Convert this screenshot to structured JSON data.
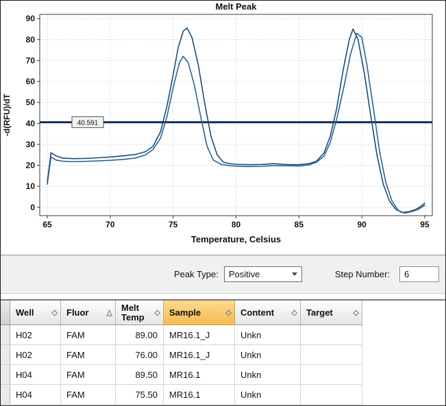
{
  "chart_data": {
    "type": "line",
    "title": "Melt Peak",
    "xlabel": "Temperature, Celsius",
    "ylabel": "-d(RFU)/dT",
    "xlim": [
      64.4,
      95.6
    ],
    "ylim": [
      -4,
      92
    ],
    "xticks": [
      65,
      70,
      75,
      80,
      85,
      90,
      95
    ],
    "yticks": [
      0,
      10,
      20,
      30,
      40,
      50,
      60,
      70,
      80,
      90
    ],
    "grid": true,
    "legend": "none",
    "threshold": {
      "value": 40.591,
      "label": "40.591",
      "color": "#16365c"
    },
    "series": [
      {
        "name": "H02 MR16.1_J",
        "color": "#1b4a7a",
        "peaks": [
          76.0,
          89.0
        ],
        "points": [
          [
            65,
            12
          ],
          [
            65.3,
            26
          ],
          [
            65.7,
            24.5
          ],
          [
            66.2,
            23.5
          ],
          [
            67,
            23.2
          ],
          [
            68,
            23.3
          ],
          [
            69,
            23.6
          ],
          [
            70,
            24
          ],
          [
            71,
            24.5
          ],
          [
            72,
            25.2
          ],
          [
            72.8,
            26.5
          ],
          [
            73.4,
            29
          ],
          [
            74,
            36
          ],
          [
            74.5,
            48
          ],
          [
            75,
            63
          ],
          [
            75.4,
            76
          ],
          [
            75.8,
            84
          ],
          [
            76.1,
            85.5
          ],
          [
            76.5,
            81
          ],
          [
            77,
            68
          ],
          [
            77.5,
            50
          ],
          [
            78,
            34
          ],
          [
            78.5,
            25
          ],
          [
            79,
            21.5
          ],
          [
            79.5,
            20.8
          ],
          [
            80,
            20.5
          ],
          [
            81,
            20.3
          ],
          [
            82,
            20.4
          ],
          [
            83,
            20.8
          ],
          [
            84,
            20.4
          ],
          [
            85,
            20.3
          ],
          [
            85.8,
            20.8
          ],
          [
            86.4,
            22
          ],
          [
            87,
            26
          ],
          [
            87.5,
            34
          ],
          [
            88,
            47
          ],
          [
            88.5,
            65
          ],
          [
            89,
            80
          ],
          [
            89.3,
            85
          ],
          [
            89.7,
            80
          ],
          [
            90.2,
            64
          ],
          [
            90.7,
            44
          ],
          [
            91.2,
            25
          ],
          [
            91.7,
            11
          ],
          [
            92.2,
            3
          ],
          [
            92.7,
            -1
          ],
          [
            93.2,
            -2.5
          ],
          [
            93.8,
            -2
          ],
          [
            94.3,
            -1
          ],
          [
            94.7,
            0.5
          ],
          [
            95,
            2
          ]
        ]
      },
      {
        "name": "H04 MR16.1",
        "color": "#2a6390",
        "peaks": [
          75.5,
          89.5
        ],
        "points": [
          [
            65,
            11
          ],
          [
            65.3,
            24
          ],
          [
            65.7,
            22.5
          ],
          [
            66.2,
            22
          ],
          [
            67,
            21.8
          ],
          [
            68,
            21.9
          ],
          [
            69,
            22.1
          ],
          [
            70,
            22.4
          ],
          [
            71,
            22.8
          ],
          [
            72,
            23.5
          ],
          [
            72.8,
            25
          ],
          [
            73.4,
            27.5
          ],
          [
            74,
            33
          ],
          [
            74.5,
            43
          ],
          [
            75,
            57
          ],
          [
            75.5,
            69
          ],
          [
            75.8,
            72
          ],
          [
            76.2,
            69
          ],
          [
            76.7,
            58
          ],
          [
            77.2,
            43
          ],
          [
            77.7,
            29
          ],
          [
            78.2,
            22.5
          ],
          [
            78.8,
            20.5
          ],
          [
            79.5,
            19.8
          ],
          [
            80,
            19.6
          ],
          [
            81,
            19.4
          ],
          [
            82,
            19.5
          ],
          [
            83,
            19.9
          ],
          [
            84,
            19.8
          ],
          [
            85,
            19.7
          ],
          [
            85.8,
            20.2
          ],
          [
            86.4,
            21.5
          ],
          [
            87,
            24.5
          ],
          [
            87.5,
            31
          ],
          [
            88,
            42
          ],
          [
            88.6,
            58
          ],
          [
            89.1,
            73
          ],
          [
            89.6,
            83
          ],
          [
            90,
            81
          ],
          [
            90.4,
            68
          ],
          [
            90.9,
            48
          ],
          [
            91.4,
            27
          ],
          [
            91.9,
            12
          ],
          [
            92.4,
            3
          ],
          [
            92.9,
            -1.5
          ],
          [
            93.4,
            -2.8
          ],
          [
            94,
            -2
          ],
          [
            94.5,
            -1
          ],
          [
            95,
            1
          ]
        ]
      }
    ]
  },
  "controls": {
    "peak_type_label": "Peak Type:",
    "peak_type_value": "Positive",
    "step_number_label": "Step Number:",
    "step_number_value": "6"
  },
  "table": {
    "columns": [
      {
        "label": "Well",
        "sort_icon": "diamond",
        "align": "left"
      },
      {
        "label": "Fluor",
        "sort_icon": "triangle-up",
        "align": "left"
      },
      {
        "label": "Melt Temp",
        "sort_icon": "diamond",
        "align": "right"
      },
      {
        "label": "Sample",
        "sort_icon": "diamond",
        "align": "left",
        "highlighted": true
      },
      {
        "label": "Content",
        "sort_icon": "diamond",
        "align": "left"
      },
      {
        "label": "Target",
        "sort_icon": "diamond",
        "align": "left"
      }
    ],
    "rows": [
      [
        "H02",
        "FAM",
        "89.00",
        "MR16.1_J",
        "Unkn",
        ""
      ],
      [
        "H02",
        "FAM",
        "76.00",
        "MR16.1_J",
        "Unkn",
        ""
      ],
      [
        "H04",
        "FAM",
        "89.50",
        "MR16.1",
        "Unkn",
        ""
      ],
      [
        "H04",
        "FAM",
        "75.50",
        "MR16.1",
        "Unkn",
        ""
      ]
    ]
  }
}
